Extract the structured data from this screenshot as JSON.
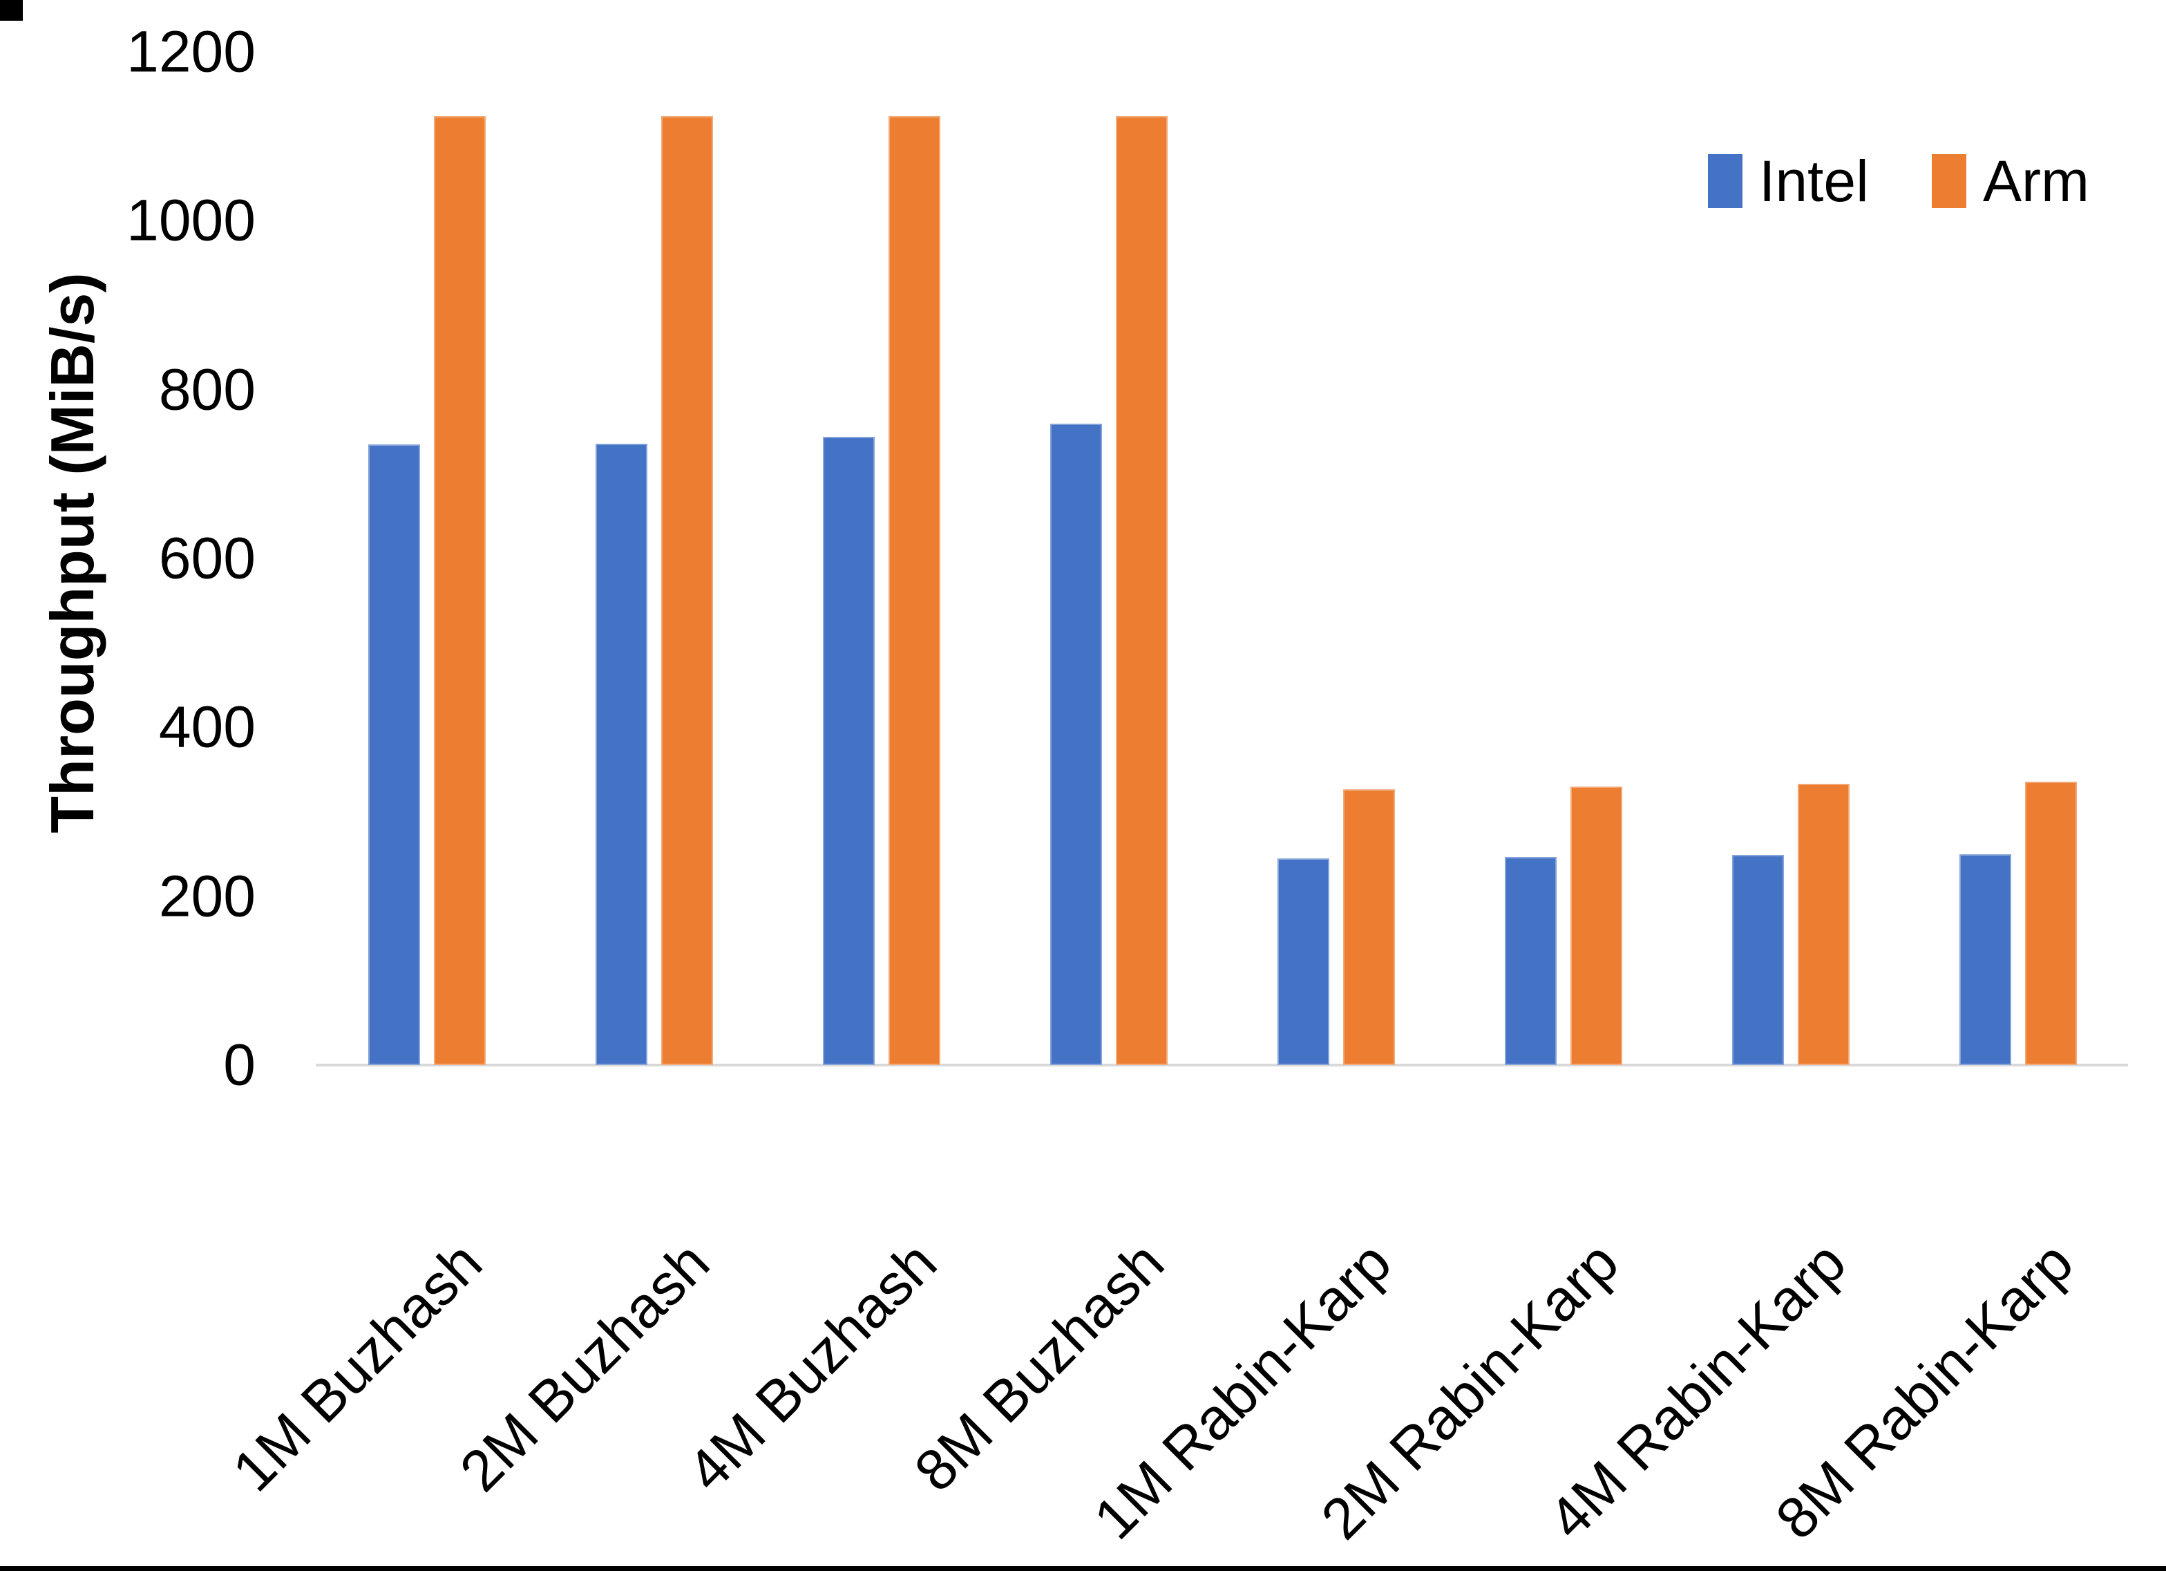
{
  "chart_data": {
    "type": "bar",
    "title": "",
    "xlabel": "",
    "ylabel": "Throughput (MiB/s)",
    "ylim": [
      0,
      1200
    ],
    "yticks": [
      0,
      200,
      400,
      600,
      800,
      1000,
      1200
    ],
    "grid": false,
    "legend_position": "top-right",
    "categories": [
      "1M Buzhash",
      "2M Buzhash",
      "4M Buzhash",
      "8M Buzhash",
      "1M Rabin-Karp",
      "2M Rabin-Karp",
      "4M Rabin-Karp",
      "8M Rabin-Karp"
    ],
    "series": [
      {
        "name": "Intel",
        "color": "#4472C4",
        "values": [
          735,
          736,
          744,
          760,
          245,
          246,
          249,
          250
        ]
      },
      {
        "name": "Arm",
        "color": "#ED7D31",
        "values": [
          1124,
          1124,
          1124,
          1124,
          327,
          330,
          333,
          336
        ]
      }
    ]
  },
  "axis": {
    "y_title": "Throughput (MiB/s)",
    "y_tick_labels": [
      "0",
      "200",
      "400",
      "600",
      "800",
      "1000",
      "1200"
    ]
  },
  "legend": {
    "items": [
      {
        "label": "Intel",
        "color": "#4472C4"
      },
      {
        "label": "Arm",
        "color": "#ED7D31"
      }
    ]
  }
}
